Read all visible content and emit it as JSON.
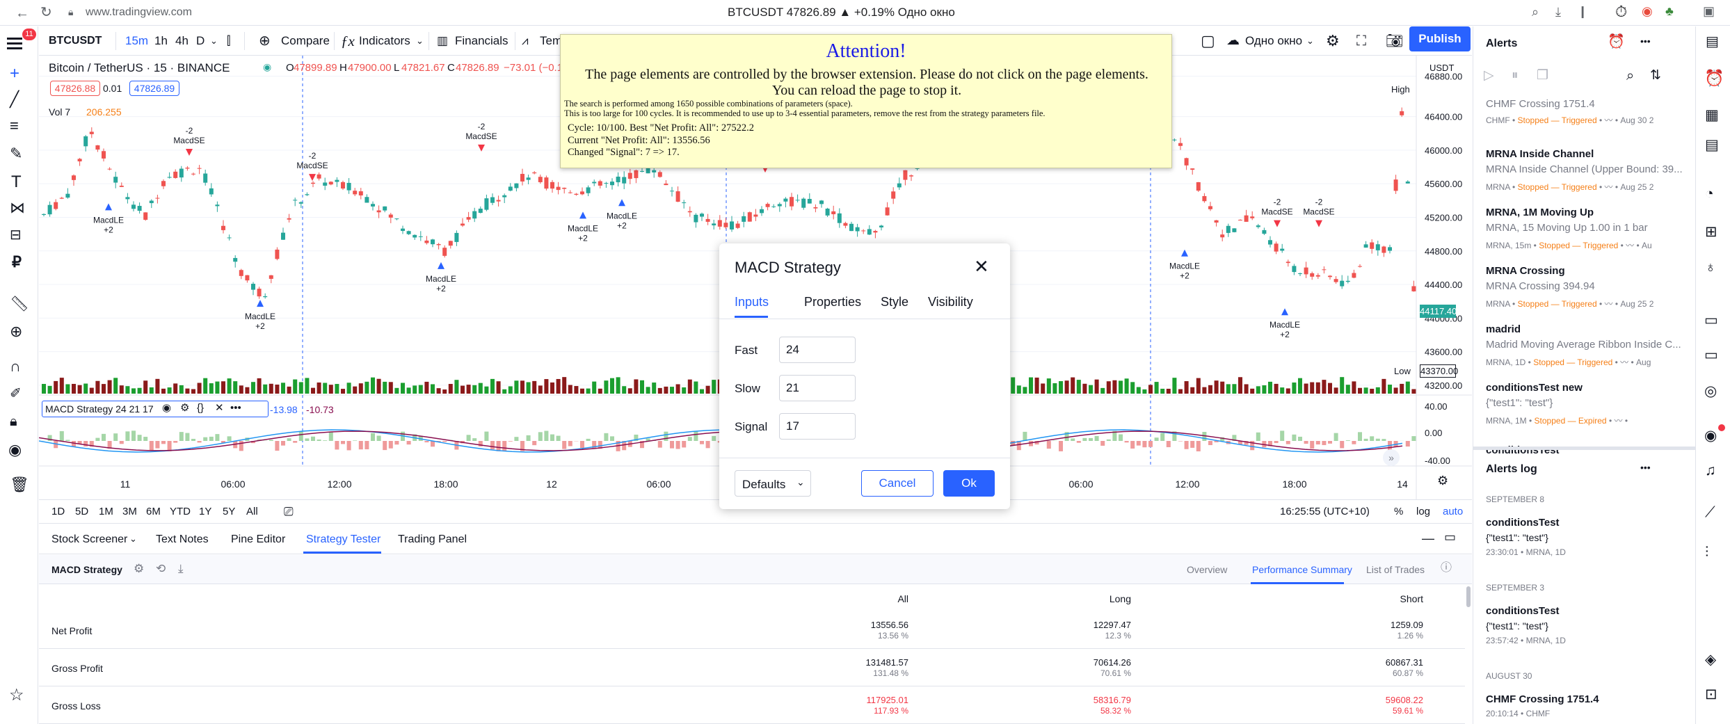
{
  "browser": {
    "url": "www.tradingview.com",
    "title": "BTCUSDT 47826.89 ▲ +0.19% Одно окно",
    "notif_count": "11"
  },
  "toolbar": {
    "symbol": "BTCUSDT",
    "interval": "15m",
    "tf1": "1h",
    "tf2": "4h",
    "tf3": "D",
    "compare": "Compare",
    "indicators": "Indicators",
    "financials": "Financials",
    "templates": "Tem",
    "layout": "Одно окно",
    "publish": "Publish"
  },
  "legend": {
    "title": "Bitcoin / TetherUS · 15 · BINANCE",
    "o_label": "O",
    "o": "47899.89",
    "h_label": "H",
    "h": "47900.00",
    "l_label": "L",
    "l": "47821.67",
    "c_label": "C",
    "c": "47826.89",
    "chg": "−73.01 (−0.15",
    "bid": "47826.88",
    "spread": "0.01",
    "ask": "47826.89",
    "vol_label": "Vol 7",
    "vol_val": "206.255"
  },
  "price_axis": {
    "currency": "USDT",
    "ticks": [
      "46880.00",
      "46400.00",
      "46000.00",
      "45600.00",
      "45200.00",
      "44800.00",
      "44400.00",
      "44000.00",
      "43600.00",
      "43200.00"
    ],
    "high_label": "High",
    "current": "44117.40",
    "low_label": "Low",
    "low": "43370.00"
  },
  "macd_axis": {
    "ticks": [
      "40.00",
      "0.00",
      "-40.00"
    ]
  },
  "time_axis": {
    "ticks": [
      "11",
      "06:00",
      "12:00",
      "18:00",
      "12",
      "06:00",
      "06:00",
      "12:00",
      "18:00",
      "14"
    ]
  },
  "macd_legend": {
    "name": "MACD Strategy 24 21 17",
    "v1": "-13.98",
    "v2": "-10.73"
  },
  "markers": {
    "short_label": "MacdSE",
    "short_qty": "-2",
    "long_label": "MacdLE",
    "long_qty": "+2"
  },
  "range_bar": {
    "ranges": [
      "1D",
      "5D",
      "1M",
      "3M",
      "6M",
      "YTD",
      "1Y",
      "5Y",
      "All"
    ],
    "clock": "16:25:55 (UTC+10)",
    "percent": "%",
    "log": "log",
    "auto": "auto"
  },
  "attention": {
    "title": "Attention!",
    "body": "The page elements are controlled by the browser extension. Please do not click on the page elements. You can reload the page to stop it.",
    "small1": "The search is performed among 1650 possible combinations of parameters (space).",
    "small2": "This is too large for 100 cycles. It is recommended to use up to 3-4 essential parameters, remove the rest from the strategy parameters file.",
    "cycle": "Cycle: 10/100. Best \"Net Profit: All\": 27522.2",
    "current": "Current \"Net Profit: All\": 13556.56",
    "changed": "Changed \"Signal\": 7 => 17."
  },
  "dialog": {
    "title": "MACD Strategy",
    "tabs": [
      "Inputs",
      "Properties",
      "Style",
      "Visibility"
    ],
    "fields": [
      {
        "label": "Fast",
        "value": "24"
      },
      {
        "label": "Slow",
        "value": "21"
      },
      {
        "label": "Signal",
        "value": "17"
      }
    ],
    "defaults": "Defaults",
    "cancel": "Cancel",
    "ok": "Ok"
  },
  "bottom": {
    "tabs": [
      "Stock Screener",
      "Text Notes",
      "Pine Editor",
      "Strategy Tester",
      "Trading Panel"
    ],
    "strategy": "MACD Strategy",
    "subtabs": [
      "Overview",
      "Performance Summary",
      "List of Trades"
    ],
    "headers": [
      "All",
      "Long",
      "Short"
    ],
    "rows": [
      {
        "label": "Net Profit",
        "all": "13556.56",
        "all_pct": "13.56 %",
        "long": "12297.47",
        "long_pct": "12.3 %",
        "short": "1259.09",
        "short_pct": "1.26 %"
      },
      {
        "label": "Gross Profit",
        "all": "131481.57",
        "all_pct": "131.48 %",
        "long": "70614.26",
        "long_pct": "70.61 %",
        "short": "60867.31",
        "short_pct": "60.87 %"
      },
      {
        "label": "Gross Loss",
        "all": "117925.01",
        "all_pct": "117.93 %",
        "long": "58316.79",
        "long_pct": "58.32 %",
        "short": "59608.22",
        "short_pct": "59.61 %"
      }
    ]
  },
  "alerts": {
    "title": "Alerts",
    "items": [
      {
        "title": "CHMF Crossing 1751.4",
        "meta": "CHMF",
        "status": "Stopped — Triggered",
        "date": "Aug 30 2"
      },
      {
        "title": "MRNA Inside Channel",
        "sub": "MRNA Inside Channel (Upper Bound: 39...",
        "meta": "MRNA",
        "status": "Stopped — Triggered",
        "date": "Aug 25 2"
      },
      {
        "title": "MRNA, 1M Moving Up",
        "sub": "MRNA, 15 Moving Up 1.00 in 1 bar",
        "meta": "MRNA, 15m",
        "status": "Stopped — Triggered",
        "date": "Au"
      },
      {
        "title": "MRNA Crossing",
        "sub": "MRNA Crossing 394.94",
        "meta": "MRNA",
        "status": "Stopped — Triggered",
        "date": "Aug 25 2"
      },
      {
        "title": "madrid",
        "sub": "Madrid Moving Average Ribbon Inside C...",
        "meta": "MRNA, 1D",
        "status": "Stopped — Triggered",
        "date": "Aug"
      },
      {
        "title": "conditionsTest new",
        "sub": "{\"test1\": \"test\"}",
        "meta": "MRNA, 1M",
        "status": "Stopped — Expired",
        "date": ""
      },
      {
        "title": "conditionsTest"
      }
    ],
    "log_title": "Alerts log",
    "log": [
      {
        "date": "SEPTEMBER 8",
        "title": "conditionsTest",
        "sub": "{\"test1\": \"test\"}",
        "meta": "23:30:01 • MRNA, 1D"
      },
      {
        "date": "SEPTEMBER 3",
        "title": "conditionsTest",
        "sub": "{\"test1\": \"test\"}",
        "meta": "23:57:42 • MRNA, 1D"
      },
      {
        "date": "AUGUST 30",
        "title": "CHMF Crossing 1751.4",
        "meta": "20:10:14 • CHMF"
      }
    ]
  },
  "colors": {
    "up": "#26a69a",
    "down": "#ef5350",
    "vol_up": "#1b9e2f",
    "vol_down": "#8b1a1a",
    "accent": "#2962ff",
    "orange": "#f57f17"
  }
}
